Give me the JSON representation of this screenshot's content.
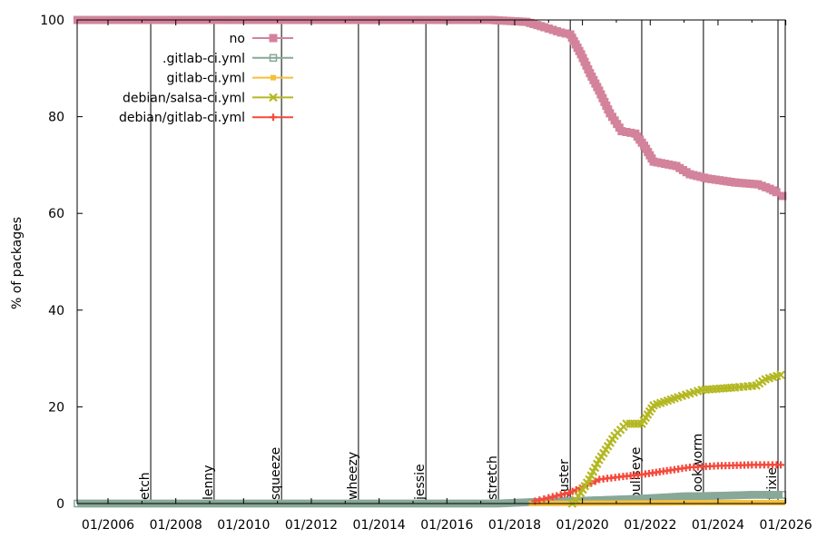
{
  "chart_data": {
    "type": "line",
    "title": "",
    "xlabel": "",
    "ylabel": "% of packages",
    "xlim": [
      2005.09,
      2026.0
    ],
    "ylim": [
      0,
      100
    ],
    "grid": false,
    "legend_position": "top-left",
    "x_ticks": [
      {
        "value": 2006,
        "label": "01/2006"
      },
      {
        "value": 2008,
        "label": "01/2008"
      },
      {
        "value": 2010,
        "label": "01/2010"
      },
      {
        "value": 2012,
        "label": "01/2012"
      },
      {
        "value": 2014,
        "label": "01/2014"
      },
      {
        "value": 2016,
        "label": "01/2016"
      },
      {
        "value": 2018,
        "label": "01/2018"
      },
      {
        "value": 2020,
        "label": "01/2020"
      },
      {
        "value": 2022,
        "label": "01/2022"
      },
      {
        "value": 2024,
        "label": "01/2024"
      },
      {
        "value": 2026,
        "label": "01/2026"
      }
    ],
    "y_ticks": [
      {
        "value": 0,
        "label": "0"
      },
      {
        "value": 20,
        "label": "20"
      },
      {
        "value": 40,
        "label": "40"
      },
      {
        "value": 60,
        "label": "60"
      },
      {
        "value": 80,
        "label": "80"
      },
      {
        "value": 100,
        "label": "100"
      }
    ],
    "releases": [
      {
        "name": "etch",
        "x": 2007.26
      },
      {
        "name": "lenny",
        "x": 2009.13
      },
      {
        "name": "squeeze",
        "x": 2011.12
      },
      {
        "name": "wheezy",
        "x": 2013.39
      },
      {
        "name": "jessie",
        "x": 2015.38
      },
      {
        "name": "stretch",
        "x": 2017.52
      },
      {
        "name": "buster",
        "x": 2019.64
      },
      {
        "name": "bullseye",
        "x": 2021.75
      },
      {
        "name": "bookworm",
        "x": 2023.57
      },
      {
        "name": "trixie",
        "x": 2025.77
      }
    ],
    "series": [
      {
        "name": "no",
        "color": "#d3839c",
        "marker": "filled-square",
        "x": [
          2005.1,
          2008,
          2011,
          2014,
          2017.3,
          2018.35,
          2018.88,
          2019.37,
          2019.64,
          2019.96,
          2020.22,
          2020.49,
          2020.81,
          2021.16,
          2021.56,
          2021.82,
          2022.1,
          2022.77,
          2023.17,
          2023.7,
          2024.5,
          2025.18,
          2025.53,
          2025.72,
          2025.9
        ],
        "y": [
          100,
          100,
          100,
          100,
          100,
          99.6,
          98.5,
          97.4,
          97,
          92.9,
          89,
          85.4,
          80.7,
          77,
          76.5,
          74,
          70.7,
          69.8,
          68.1,
          67.2,
          66.4,
          66,
          65.1,
          64.4,
          63.6
        ]
      },
      {
        "name": ".gitlab-ci.yml",
        "color": "#88a898",
        "marker": "hollow-square",
        "x": [
          2005.1,
          2008,
          2011,
          2014,
          2017.5,
          2018.5,
          2019.6,
          2020.5,
          2021.7,
          2022.5,
          2023.0,
          2024.0,
          2025.0,
          2025.9
        ],
        "y": [
          0,
          0,
          0,
          0,
          0,
          0.3,
          0.5,
          0.7,
          1.0,
          1.3,
          1.5,
          1.6,
          1.8,
          1.8
        ]
      },
      {
        "name": "gitlab-ci.yml",
        "color": "#f6bf3c",
        "marker": "small-square",
        "x": [
          2018.5,
          2019.6,
          2021.0,
          2022.5,
          2024.0,
          2025.9
        ],
        "y": [
          0,
          0.05,
          0.1,
          0.15,
          0.2,
          0.2
        ]
      },
      {
        "name": "debian/salsa-ci.yml",
        "color": "#b4b822",
        "marker": "cross",
        "x": [
          2019.7,
          2019.88,
          2020.2,
          2020.49,
          2020.95,
          2021.3,
          2021.75,
          2022.1,
          2022.82,
          2023.52,
          2024.5,
          2025.13,
          2025.4,
          2025.85
        ],
        "y": [
          0,
          1.5,
          5,
          9,
          14,
          16.5,
          16.5,
          20.3,
          22,
          23.5,
          24,
          24.4,
          25.7,
          26.6
        ]
      },
      {
        "name": "debian/gitlab-ci.yml",
        "color": "#f44a3c",
        "marker": "plus",
        "x": [
          2018.6,
          2019.0,
          2019.6,
          2020.14,
          2020.5,
          2021.2,
          2021.75,
          2022.6,
          2023.17,
          2024.0,
          2025.0,
          2025.85
        ],
        "y": [
          0.5,
          1.2,
          2.2,
          3.8,
          5,
          5.6,
          6,
          6.9,
          7.5,
          7.8,
          8,
          8
        ]
      }
    ]
  }
}
